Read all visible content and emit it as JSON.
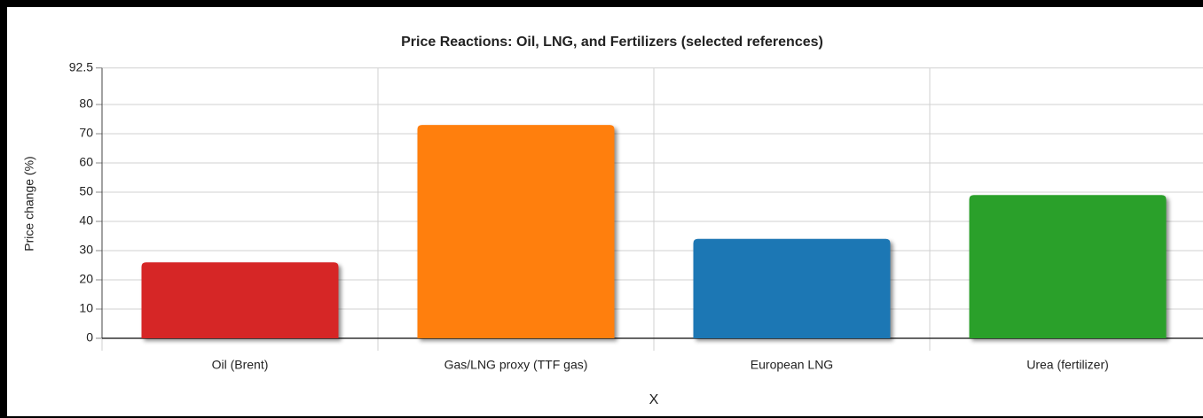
{
  "chart_data": {
    "type": "bar",
    "title": "Price Reactions: Oil, LNG, and Fertilizers (selected references)",
    "x_label": "X",
    "y_label": "Price change (%)",
    "categories": [
      "Oil (Brent)",
      "Gas/LNG proxy (TTF gas)",
      "European LNG",
      "Urea (fertilizer)"
    ],
    "values": [
      26,
      73,
      34,
      49
    ],
    "colors": [
      "#d62728",
      "#ff7f0e",
      "#1f77b4",
      "#2ca02c"
    ],
    "ylim": [
      0,
      92.5
    ],
    "yticks": [
      0,
      10,
      20,
      30,
      40,
      50,
      60,
      70,
      80,
      92.5
    ],
    "grid": true
  }
}
